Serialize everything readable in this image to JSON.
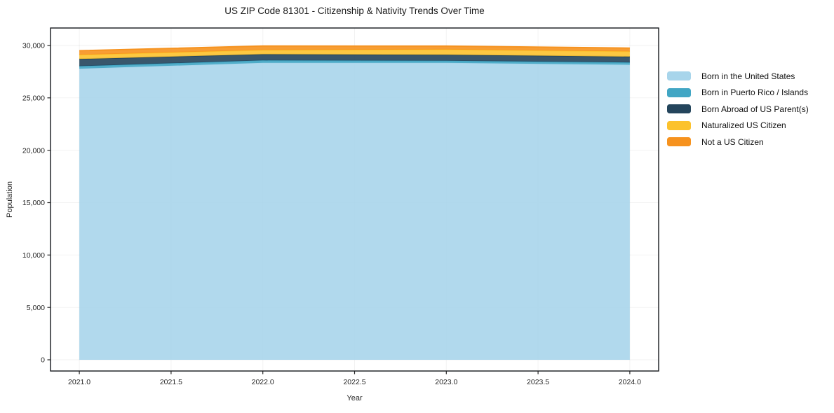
{
  "chart_data": {
    "type": "area",
    "stacked": true,
    "title": "US ZIP Code 81301 - Citizenship & Nativity Trends Over Time",
    "xlabel": "Year",
    "ylabel": "Population",
    "x": [
      2021,
      2022,
      2023,
      2024
    ],
    "series": [
      {
        "name": "Born in the United States",
        "color": "#a8d5eb",
        "values": [
          27790,
          28350,
          28340,
          28160
        ]
      },
      {
        "name": "Born in Puerto Rico / Islands",
        "color": "#41a6c4",
        "values": [
          240,
          225,
          200,
          220
        ]
      },
      {
        "name": "Born Abroad of US Parent(s)",
        "color": "#24455c",
        "values": [
          680,
          590,
          575,
          560
        ]
      },
      {
        "name": "Naturalized US Citizen",
        "color": "#fcc22d",
        "values": [
          400,
          400,
          495,
          490
        ]
      },
      {
        "name": "Not a US Citizen",
        "color": "#f6921e",
        "values": [
          395,
          390,
          335,
          330
        ]
      }
    ],
    "totals": [
      29505,
      29955,
      29945,
      29760
    ],
    "xticks": [
      "2021.0",
      "2021.5",
      "2022.0",
      "2022.5",
      "2023.0",
      "2023.5",
      "2024.0"
    ],
    "xtick_values": [
      2021,
      2021.5,
      2022,
      2022.5,
      2023,
      2023.5,
      2024
    ],
    "yticks": [
      "0",
      "5,000",
      "10,000",
      "15,000",
      "20,000",
      "25,000",
      "30,000"
    ],
    "ytick_values": [
      0,
      5000,
      10000,
      15000,
      20000,
      25000,
      30000
    ],
    "xlim": [
      2020.843,
      2024.157
    ],
    "ylim": [
      -1070,
      31670
    ],
    "grid": true,
    "legend_position": "outside-right"
  }
}
